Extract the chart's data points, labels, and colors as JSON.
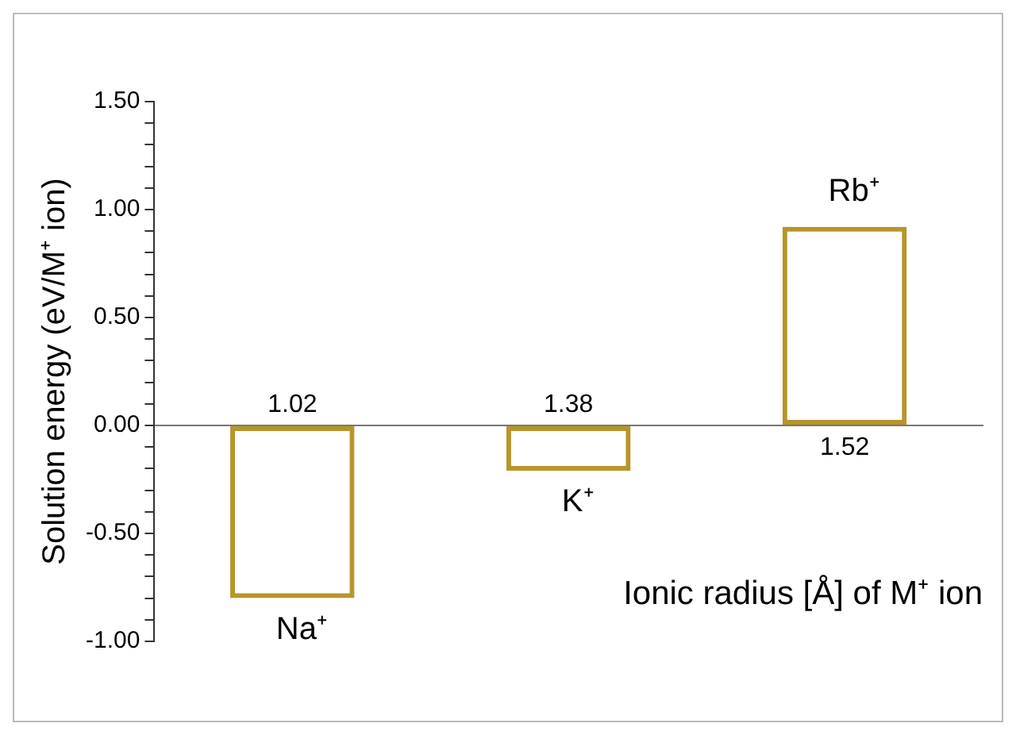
{
  "chart_data": {
    "type": "bar",
    "xlabel": "Ionic radius [Å] of M⁺ ion",
    "ylabel": "Solution energy (eV/M⁺ ion)",
    "categories": [
      "1.02",
      "1.38",
      "1.52"
    ],
    "series": [
      {
        "color": "#b8952a",
        "values": [
          -0.8,
          -0.21,
          0.92
        ]
      }
    ],
    "ylim": [
      -1,
      1.5
    ],
    "yticks": [
      {
        "value": -1,
        "label": "-1.00"
      },
      {
        "value": -0.9,
        "label": null
      },
      {
        "value": -0.8,
        "label": null
      },
      {
        "value": -0.7,
        "label": null
      },
      {
        "value": -0.6,
        "label": null
      },
      {
        "value": -0.5,
        "label": "-0.50"
      },
      {
        "value": -0.4,
        "label": null
      },
      {
        "value": -0.3,
        "label": null
      },
      {
        "value": -0.2,
        "label": null
      },
      {
        "value": -0.1,
        "label": null
      },
      {
        "value": 0,
        "label": "0.00"
      },
      {
        "value": 0.1,
        "label": null
      },
      {
        "value": 0.2,
        "label": null
      },
      {
        "value": 0.3,
        "label": null
      },
      {
        "value": 0.4,
        "label": null
      },
      {
        "value": 0.5,
        "label": "0.50"
      },
      {
        "value": 0.6,
        "label": null
      },
      {
        "value": 0.7,
        "label": null
      },
      {
        "value": 0.8,
        "label": null
      },
      {
        "value": 0.9,
        "label": null
      },
      {
        "value": 1,
        "label": "1.00"
      },
      {
        "value": 1.1,
        "label": null
      },
      {
        "value": 1.2,
        "label": null
      },
      {
        "value": 1.3,
        "label": null
      },
      {
        "value": 1.4,
        "label": null
      },
      {
        "value": 1.5,
        "label": "1.50"
      }
    ],
    "annotations": [
      {
        "text": "Na⁺",
        "x": "1.02",
        "y": -0.8
      },
      {
        "text": "K⁺",
        "x": "1.38",
        "y": -0.21
      },
      {
        "text": "Rb⁺",
        "x": "1.52",
        "y": 0.92
      }
    ],
    "grid": false,
    "legend": false
  }
}
